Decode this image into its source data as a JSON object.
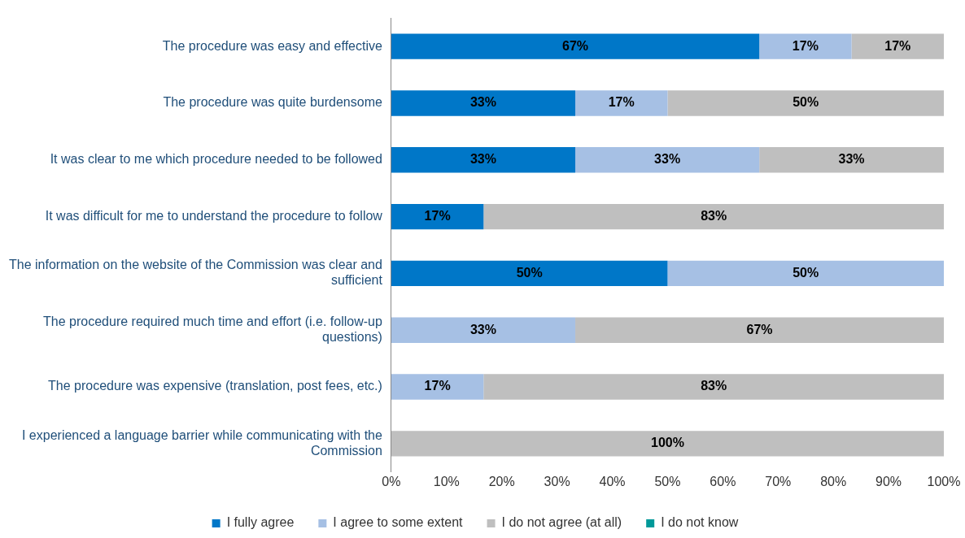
{
  "chart_data": {
    "type": "bar",
    "orientation": "horizontal",
    "stacked": true,
    "categories": [
      "The procedure was easy and effective",
      "The procedure was quite burdensome",
      "It was clear to me which procedure needed to be followed",
      "It was difficult for me to understand the procedure to follow",
      "The information on the website of the Commission was clear and sufficient",
      "The procedure required much time and effort (i.e. follow-up questions)",
      "The procedure was expensive (translation, post fees, etc.)",
      "I experienced a language barrier while communicating with the Commission"
    ],
    "series": [
      {
        "name": "I fully agree",
        "color": "#0077c8",
        "values": [
          66.6,
          33.3,
          33.3,
          16.7,
          50,
          null,
          null,
          null
        ],
        "value_labels": [
          "67%",
          "33%",
          "33%",
          "17%",
          "50%",
          null,
          null,
          null
        ]
      },
      {
        "name": "I agree to some extent",
        "color": "#a6c0e4",
        "values": [
          16.7,
          16.7,
          33.3,
          null,
          50,
          33.3,
          16.7,
          null
        ],
        "value_labels": [
          "17%",
          "17%",
          "33%",
          null,
          "50%",
          "33%",
          "17%",
          null
        ]
      },
      {
        "name": "I do not agree (at all)",
        "color": "#bfbfbf",
        "values": [
          16.7,
          50,
          33.4,
          83.3,
          null,
          66.7,
          83.3,
          100
        ],
        "value_labels": [
          "17%",
          "50%",
          "33%",
          "83%",
          null,
          "67%",
          "83%",
          "100%"
        ]
      },
      {
        "name": "I do not know",
        "color": "#009999",
        "values": [
          null,
          null,
          null,
          null,
          null,
          null,
          null,
          null
        ]
      }
    ],
    "xlim": [
      0,
      100
    ],
    "xticks": [
      {
        "value": 0,
        "label": "0%"
      },
      {
        "value": 10,
        "label": "10%"
      },
      {
        "value": 20,
        "label": "20%"
      },
      {
        "value": 30,
        "label": "30%"
      },
      {
        "value": 40,
        "label": "40%"
      },
      {
        "value": 50,
        "label": "50%"
      },
      {
        "value": 60,
        "label": "60%"
      },
      {
        "value": 70,
        "label": "70%"
      },
      {
        "value": 80,
        "label": "80%"
      },
      {
        "value": 90,
        "label": "90%"
      },
      {
        "value": 100,
        "label": "100%"
      }
    ],
    "grid": false,
    "legend": "bottom"
  }
}
